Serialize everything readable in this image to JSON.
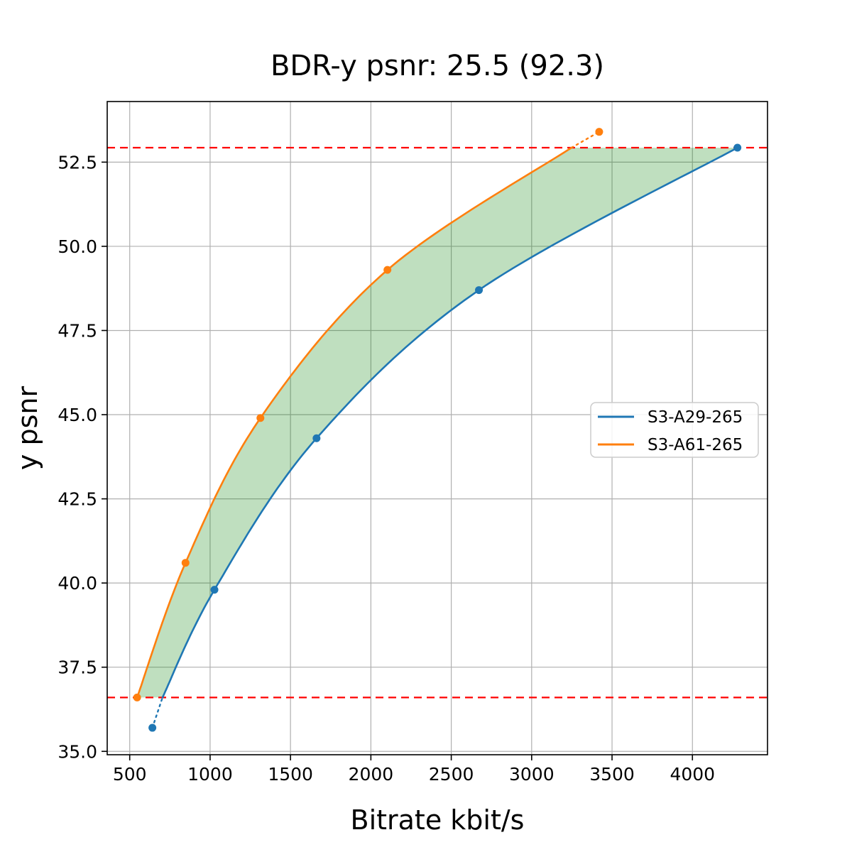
{
  "chart_data": {
    "type": "line",
    "title": "BDR-y psnr: 25.5 (92.3)",
    "xlabel": "Bitrate kbit/s",
    "ylabel": "y psnr",
    "xlim": [
      360,
      4467
    ],
    "ylim": [
      34.9,
      54.3
    ],
    "xticks": [
      500,
      1000,
      1500,
      2000,
      2500,
      3000,
      3500,
      4000
    ],
    "yticks": [
      35.0,
      37.5,
      40.0,
      42.5,
      45.0,
      47.5,
      50.0,
      52.5
    ],
    "grid": true,
    "grid_color": "#b0b0b0",
    "series": [
      {
        "name": "S3-A29-265",
        "color": "#1f77b4",
        "points": [
          [
            641,
            35.7
          ],
          [
            1027,
            39.8
          ],
          [
            1662,
            44.3
          ],
          [
            2672,
            48.7
          ],
          [
            4280,
            52.93
          ]
        ],
        "solid_span": [
          [
            704,
            36.6
          ],
          [
            1027,
            39.8
          ],
          [
            1662,
            44.3
          ],
          [
            2672,
            48.7
          ],
          [
            4280,
            52.93
          ]
        ],
        "dotted_span": [
          [
            641,
            35.7
          ],
          [
            704,
            36.6
          ]
        ]
      },
      {
        "name": "S3-A61-265",
        "color": "#ff7f0e",
        "points": [
          [
            546,
            36.6
          ],
          [
            847,
            40.6
          ],
          [
            1313,
            44.9
          ],
          [
            2103,
            49.3
          ],
          [
            3420,
            53.4
          ]
        ],
        "solid_span": [
          [
            546,
            36.6
          ],
          [
            847,
            40.6
          ],
          [
            1313,
            44.9
          ],
          [
            2103,
            49.3
          ],
          [
            3248,
            52.93
          ]
        ],
        "dotted_span": [
          [
            3248,
            52.93
          ],
          [
            3420,
            53.4
          ]
        ]
      }
    ],
    "hlines": {
      "values": [
        36.6,
        52.93
      ],
      "color": "#ff0000",
      "style": "dashed"
    },
    "shaded_region": {
      "description": "area between the two rate-distortion curves clipped between the red overlap lines",
      "fill_color": "#008000",
      "fill_opacity": 0.25
    },
    "legend": {
      "position": "center right",
      "entries": [
        "S3-A29-265",
        "S3-A61-265"
      ]
    }
  }
}
